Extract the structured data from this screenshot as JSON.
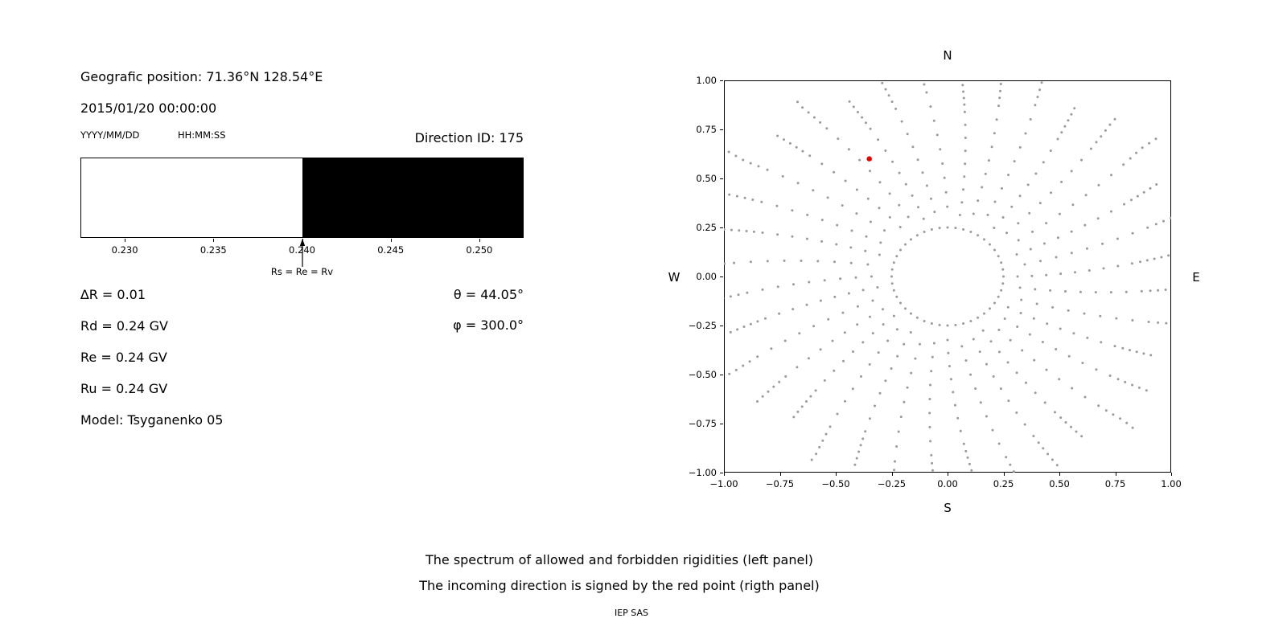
{
  "left_panel": {
    "geo_position": "Geografic position: 71.36°N 128.54°E",
    "datetime": "2015/01/20 00:00:00",
    "date_format_label": "YYYY/MM/DD",
    "time_format_label": "HH:MM:SS",
    "direction_id": "Direction ID: 175",
    "arrow_label": "Rs = Re = Rv",
    "params": {
      "delta_r": "∆R = 0.01",
      "rd": "Rd = 0.24 GV",
      "re": "Re = 0.24 GV",
      "ru": "Ru = 0.24 GV",
      "model": "Model: Tsyganenko 05",
      "theta": "θ = 44.05°",
      "phi": "φ = 300.0°"
    }
  },
  "right_panel": {
    "labels": {
      "top": "N",
      "bottom": "S",
      "left": "W",
      "right": "E"
    }
  },
  "caption": {
    "line1": "The spectrum of allowed and forbidden rigidities (left panel)",
    "line2": "The incoming direction is signed by the red point (rigth panel)",
    "credit": "IEP SAS"
  },
  "chart_data": [
    {
      "type": "bar",
      "panel": "left",
      "description": "Rigidity spectrum: white region = allowed rigidities, black region = forbidden rigidities",
      "xlim": [
        0.2275,
        0.2525
      ],
      "xticks": [
        0.23,
        0.235,
        0.24,
        0.245,
        0.25
      ],
      "boundary_rigidity": 0.24,
      "allowed_range": [
        0.2275,
        0.24
      ],
      "forbidden_range": [
        0.24,
        0.2525
      ],
      "allowed_color": "#ffffff",
      "forbidden_color": "#000000",
      "annotation": "Rs = Re = Rv"
    },
    {
      "type": "scatter",
      "panel": "right",
      "description": "Asymptotic directions map; gray dots form an inner ring plus 36 radial spokes, red point marks incoming direction",
      "xlim": [
        -1.0,
        1.0
      ],
      "ylim": [
        -1.0,
        1.0
      ],
      "xticks": [
        -1.0,
        -0.75,
        -0.5,
        -0.25,
        0.0,
        0.25,
        0.5,
        0.75,
        1.0
      ],
      "yticks": [
        -1.0,
        -0.75,
        -0.5,
        -0.25,
        0.0,
        0.25,
        0.5,
        0.75,
        1.0
      ],
      "grid": false,
      "marker_color": "#9a9a9a",
      "red_point": {
        "x": -0.35,
        "y": 0.6,
        "color": "#e60000"
      },
      "gray_pattern": {
        "ring": {
          "radius": 0.25,
          "n_points": 44
        },
        "spokes": {
          "n_spokes": 36,
          "angle_step_deg": 10,
          "inner": {
            "r_start": 0.34,
            "r_end": 0.9,
            "n_points": 9
          },
          "outer_clump": {
            "r_start": 0.94,
            "r_end": 1.08,
            "n_points": 5
          },
          "length_variation": 0.16,
          "curvature_deg": 7
        }
      }
    }
  ]
}
